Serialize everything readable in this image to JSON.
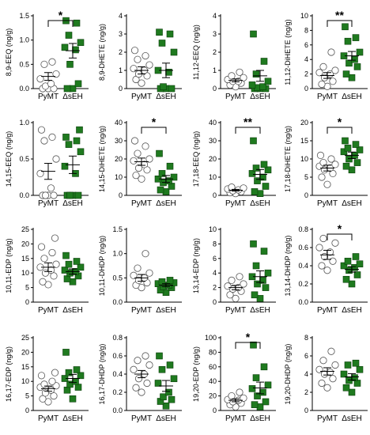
{
  "chart_data": [
    {
      "type": "scatter",
      "ylabel": "8,9-EEQ (ng/g)",
      "ylim": [
        0,
        1.5
      ],
      "yticks": [
        "0.0",
        "0.5",
        "1.0",
        "1.5"
      ],
      "categories": [
        "PyMT",
        "ΔsEH"
      ],
      "series": [
        {
          "group": "PyMT",
          "values": [
            0,
            0,
            0,
            0.05,
            0.1,
            0.2,
            0.3,
            0.5,
            0.55
          ],
          "mean": 0.25,
          "sem": 0.08
        },
        {
          "group": "ΔsEH",
          "values": [
            0,
            0,
            0.1,
            0.5,
            0.8,
            0.85,
            0.95,
            1.1,
            1.35,
            1.4
          ],
          "mean": 0.78,
          "sem": 0.15
        }
      ],
      "significance": "*"
    },
    {
      "type": "scatter",
      "ylabel": "8,9-DHETE (ng/g)",
      "ylim": [
        0,
        4
      ],
      "yticks": [
        "0",
        "1",
        "2",
        "3",
        "4"
      ],
      "categories": [
        "PyMT",
        "ΔsEH"
      ],
      "series": [
        {
          "group": "PyMT",
          "values": [
            0.3,
            0.5,
            0.7,
            0.8,
            1.0,
            1.1,
            1.3,
            1.6,
            1.8,
            2.1
          ],
          "mean": 1.0,
          "sem": 0.2
        },
        {
          "group": "ΔsEH",
          "values": [
            0,
            0,
            0,
            0.1,
            0.9,
            1.0,
            2.0,
            2.5,
            3.0,
            3.1
          ],
          "mean": 1.0,
          "sem": 0.4
        }
      ],
      "significance": ""
    },
    {
      "type": "scatter",
      "ylabel": "11,12-EEQ (ng/g)",
      "ylim": [
        0,
        4
      ],
      "yticks": [
        "0",
        "1",
        "2",
        "3",
        "4"
      ],
      "categories": [
        "PyMT",
        "ΔsEH"
      ],
      "series": [
        {
          "group": "PyMT",
          "values": [
            0.1,
            0.2,
            0.3,
            0.4,
            0.4,
            0.5,
            0.6,
            0.7,
            0.9
          ],
          "mean": 0.45,
          "sem": 0.08
        },
        {
          "group": "ΔsEH",
          "values": [
            0,
            0,
            0,
            0.05,
            0.1,
            0.2,
            0.4,
            0.8,
            1.5,
            3.0
          ],
          "mean": 0.7,
          "sem": 0.3
        }
      ],
      "significance": ""
    },
    {
      "type": "scatter",
      "ylabel": "11,12-DiHETE (ng/g)",
      "ylim": [
        0,
        10
      ],
      "yticks": [
        "0",
        "2",
        "4",
        "6",
        "8",
        "10"
      ],
      "categories": [
        "PyMT",
        "ΔsEH"
      ],
      "series": [
        {
          "group": "PyMT",
          "values": [
            0.3,
            0.6,
            1.0,
            1.5,
            2.0,
            2.2,
            2.5,
            3.0,
            5.0
          ],
          "mean": 1.8,
          "sem": 0.4
        },
        {
          "group": "ΔsEH",
          "values": [
            1.5,
            2.0,
            3.0,
            3.5,
            4.0,
            4.5,
            5.0,
            6.5,
            7.0,
            8.5
          ],
          "mean": 4.5,
          "sem": 0.6
        }
      ],
      "significance": "**"
    },
    {
      "type": "scatter",
      "ylabel": "14,15-EEQ (ng/g)",
      "ylim": [
        0,
        1.0
      ],
      "yticks": [
        "0.0",
        "0.5",
        "1.0"
      ],
      "categories": [
        "PyMT",
        "ΔsEH"
      ],
      "series": [
        {
          "group": "PyMT",
          "values": [
            0,
            0,
            0,
            0,
            0.1,
            0.3,
            0.5,
            0.75,
            0.8,
            0.9
          ],
          "mean": 0.33,
          "sem": 0.11
        },
        {
          "group": "ΔsEH",
          "values": [
            0,
            0,
            0,
            0,
            0.3,
            0.4,
            0.6,
            0.7,
            0.75,
            0.8,
            0.9
          ],
          "mean": 0.42,
          "sem": 0.12
        }
      ],
      "significance": ""
    },
    {
      "type": "scatter",
      "ylabel": "14,15-DiHETE (ng/g)",
      "ylim": [
        0,
        40
      ],
      "yticks": [
        "0",
        "10",
        "20",
        "30",
        "40"
      ],
      "categories": [
        "PyMT",
        "ΔsEH"
      ],
      "series": [
        {
          "group": "PyMT",
          "values": [
            9,
            11,
            14,
            15,
            17,
            19,
            20,
            23,
            27,
            30
          ],
          "mean": 18.5,
          "sem": 2.0
        },
        {
          "group": "ΔsEH",
          "values": [
            2,
            3,
            5,
            7,
            8,
            9,
            10,
            12,
            16,
            23
          ],
          "mean": 9.0,
          "sem": 1.9
        }
      ],
      "significance": "*"
    },
    {
      "type": "scatter",
      "ylabel": "17,18-EEQ (ng/g)",
      "ylim": [
        0,
        40
      ],
      "yticks": [
        "0",
        "10",
        "20",
        "30",
        "40"
      ],
      "categories": [
        "PyMT",
        "ΔsEH"
      ],
      "series": [
        {
          "group": "PyMT",
          "values": [
            1,
            1.5,
            2,
            2.5,
            3,
            3.5,
            4,
            4.5
          ],
          "mean": 2.8,
          "sem": 0.5
        },
        {
          "group": "ΔsEH",
          "values": [
            1,
            2,
            5,
            8,
            10,
            12,
            14,
            15,
            17,
            30
          ],
          "mean": 11.5,
          "sem": 2.7
        }
      ],
      "significance": "**"
    },
    {
      "type": "scatter",
      "ylabel": "17,18-DiHETE (ng/g)",
      "ylim": [
        0,
        20
      ],
      "yticks": [
        "0",
        "5",
        "10",
        "15",
        "20"
      ],
      "categories": [
        "PyMT",
        "ΔsEH"
      ],
      "series": [
        {
          "group": "PyMT",
          "values": [
            3,
            5,
            6,
            7,
            7.5,
            8,
            8.5,
            9,
            10,
            11
          ],
          "mean": 7.5,
          "sem": 0.8
        },
        {
          "group": "ΔsEH",
          "values": [
            7,
            8,
            9,
            10,
            11,
            12,
            12.5,
            13,
            14,
            15
          ],
          "mean": 11.0,
          "sem": 0.9
        }
      ],
      "significance": "*"
    },
    {
      "type": "scatter",
      "ylabel": "10,11-EDP (ng/g)",
      "ylim": [
        0,
        25
      ],
      "yticks": [
        "0",
        "5",
        "10",
        "15",
        "20",
        "25"
      ],
      "categories": [
        "PyMT",
        "ΔsEH"
      ],
      "series": [
        {
          "group": "PyMT",
          "values": [
            6,
            7,
            9,
            10,
            11,
            12,
            13,
            15,
            17,
            19,
            22
          ],
          "mean": 12.0,
          "sem": 1.5
        },
        {
          "group": "ΔsEH",
          "values": [
            7,
            8,
            9,
            10,
            10.5,
            11,
            12,
            13,
            14,
            16
          ],
          "mean": 10.5,
          "sem": 0.9
        }
      ],
      "significance": ""
    },
    {
      "type": "scatter",
      "ylabel": "10,11-DHDP (ng/g)",
      "ylim": [
        0,
        1.5
      ],
      "yticks": [
        "0.0",
        "0.5",
        "1.0",
        "1.5"
      ],
      "categories": [
        "PyMT",
        "ΔsEH"
      ],
      "series": [
        {
          "group": "PyMT",
          "values": [
            0.3,
            0.35,
            0.4,
            0.45,
            0.5,
            0.55,
            0.6,
            0.7,
            1.0
          ],
          "mean": 0.5,
          "sem": 0.07
        },
        {
          "group": "ΔsEH",
          "values": [
            0.2,
            0.25,
            0.3,
            0.32,
            0.35,
            0.38,
            0.4,
            0.42,
            0.45
          ],
          "mean": 0.35,
          "sem": 0.03
        }
      ],
      "significance": ""
    },
    {
      "type": "scatter",
      "ylabel": "13,14-EDP (ng/g)",
      "ylim": [
        0,
        10
      ],
      "yticks": [
        "0",
        "2",
        "4",
        "6",
        "8",
        "10"
      ],
      "categories": [
        "PyMT",
        "ΔsEH"
      ],
      "series": [
        {
          "group": "PyMT",
          "values": [
            0.5,
            1,
            1.5,
            1.8,
            2,
            2.2,
            2.5,
            3,
            3.5
          ],
          "mean": 2.0,
          "sem": 0.3
        },
        {
          "group": "ΔsEH",
          "values": [
            0.5,
            1,
            2,
            2.5,
            3,
            3.5,
            4,
            5,
            7,
            8
          ],
          "mean": 3.5,
          "sem": 0.8
        }
      ],
      "significance": ""
    },
    {
      "type": "scatter",
      "ylabel": "13,14-DHDP (ng/g)",
      "ylim": [
        0,
        0.8
      ],
      "yticks": [
        "0.0",
        "0.2",
        "0.4",
        "0.6",
        "0.8"
      ],
      "categories": [
        "PyMT",
        "ΔsEH"
      ],
      "series": [
        {
          "group": "PyMT",
          "values": [
            0.35,
            0.4,
            0.45,
            0.5,
            0.55,
            0.6,
            0.65,
            0.7
          ],
          "mean": 0.52,
          "sem": 0.05
        },
        {
          "group": "ΔsEH",
          "values": [
            0.2,
            0.25,
            0.3,
            0.35,
            0.38,
            0.4,
            0.42,
            0.45,
            0.5
          ],
          "mean": 0.36,
          "sem": 0.03
        }
      ],
      "significance": "*"
    },
    {
      "type": "scatter",
      "ylabel": "16,17-EDP (ng/g)",
      "ylim": [
        0,
        25
      ],
      "yticks": [
        "0",
        "5",
        "10",
        "15",
        "20",
        "25"
      ],
      "categories": [
        "PyMT",
        "ΔsEH"
      ],
      "series": [
        {
          "group": "PyMT",
          "values": [
            3,
            4,
            5,
            6,
            7,
            8,
            8.5,
            9,
            10,
            12,
            13
          ],
          "mean": 7.5,
          "sem": 0.9
        },
        {
          "group": "ΔsEH",
          "values": [
            4,
            7,
            8,
            9,
            10,
            11,
            12,
            13,
            14,
            20
          ],
          "mean": 11.0,
          "sem": 1.4
        }
      ],
      "significance": ""
    },
    {
      "type": "scatter",
      "ylabel": "16,17-DHDP (ng/g)",
      "ylim": [
        0,
        0.8
      ],
      "yticks": [
        "0.0",
        "0.2",
        "0.4",
        "0.6",
        "0.8"
      ],
      "categories": [
        "PyMT",
        "ΔsEH"
      ],
      "series": [
        {
          "group": "PyMT",
          "values": [
            0.2,
            0.25,
            0.3,
            0.35,
            0.4,
            0.45,
            0.5,
            0.55,
            0.6
          ],
          "mean": 0.4,
          "sem": 0.04
        },
        {
          "group": "ΔsEH",
          "values": [
            0.05,
            0.1,
            0.12,
            0.15,
            0.2,
            0.3,
            0.35,
            0.45,
            0.5,
            0.6
          ],
          "mean": 0.27,
          "sem": 0.06
        }
      ],
      "significance": ""
    },
    {
      "type": "scatter",
      "ylabel": "19,20-EDP (ng/g)",
      "ylim": [
        0,
        100
      ],
      "yticks": [
        "0",
        "20",
        "40",
        "60",
        "80",
        "100"
      ],
      "categories": [
        "PyMT",
        "ΔsEH"
      ],
      "series": [
        {
          "group": "PyMT",
          "values": [
            5,
            8,
            10,
            12,
            14,
            15,
            17,
            20,
            25
          ],
          "mean": 14.0,
          "sem": 2.0
        },
        {
          "group": "ΔsEH",
          "values": [
            5,
            8,
            12,
            20,
            25,
            30,
            35,
            45,
            60,
            90
          ],
          "mean": 31.0,
          "sem": 8.0
        }
      ],
      "significance": "*"
    },
    {
      "type": "scatter",
      "ylabel": "19,20-DHDP (ng/g)",
      "ylim": [
        0,
        8
      ],
      "yticks": [
        "0",
        "2",
        "4",
        "6",
        "8"
      ],
      "categories": [
        "PyMT",
        "ΔsEH"
      ],
      "series": [
        {
          "group": "PyMT",
          "values": [
            2.5,
            3,
            3.5,
            4,
            4.2,
            4.5,
            5,
            5.5,
            6.5
          ],
          "mean": 4.3,
          "sem": 0.4
        },
        {
          "group": "ΔsEH",
          "values": [
            2,
            2.5,
            3,
            3.3,
            3.6,
            4,
            4.5,
            5,
            5.2
          ],
          "mean": 3.7,
          "sem": 0.35
        }
      ],
      "significance": ""
    }
  ],
  "colors": {
    "pymt_fill": "#ffffff",
    "pymt_stroke": "#555555",
    "dseh_fill": "#1f7a1f",
    "dseh_stroke": "#0b3d0b",
    "axis": "#000000"
  }
}
